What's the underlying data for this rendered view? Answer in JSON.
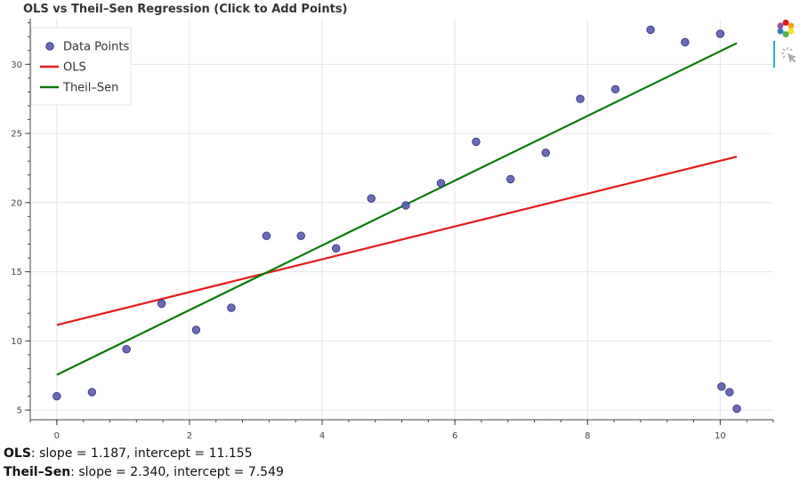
{
  "title": "OLS vs Theil–Sen Regression (Click to Add Points)",
  "chart_data": {
    "type": "scatter",
    "xlim": [
      -0.4,
      10.8
    ],
    "ylim": [
      4.3,
      33.3
    ],
    "x_ticks": [
      0,
      2,
      4,
      6,
      8,
      10
    ],
    "y_ticks": [
      5,
      10,
      15,
      20,
      25,
      30
    ],
    "grid": true,
    "legend_position": "top-left",
    "points": [
      [
        0,
        6.0
      ],
      [
        0.53,
        6.3
      ],
      [
        1.05,
        9.4
      ],
      [
        1.58,
        12.7
      ],
      [
        2.1,
        10.8
      ],
      [
        2.63,
        12.4
      ],
      [
        3.16,
        17.6
      ],
      [
        3.68,
        17.6
      ],
      [
        4.21,
        16.7
      ],
      [
        4.74,
        20.3
      ],
      [
        5.26,
        19.8
      ],
      [
        5.79,
        21.4
      ],
      [
        6.32,
        24.4
      ],
      [
        6.84,
        21.7
      ],
      [
        7.37,
        23.6
      ],
      [
        7.89,
        27.5
      ],
      [
        8.42,
        28.2
      ],
      [
        8.95,
        32.5
      ],
      [
        9.47,
        31.6
      ],
      [
        10.0,
        32.2
      ],
      [
        10.02,
        6.7
      ],
      [
        10.14,
        6.3
      ],
      [
        10.25,
        5.1
      ]
    ],
    "series": [
      {
        "name": "Data Points",
        "kind": "points",
        "color": "#5a5aae"
      },
      {
        "name": "OLS",
        "kind": "line",
        "color": "#e41a1c",
        "slope": 1.187,
        "intercept": 11.155,
        "x": [
          0,
          10.25
        ]
      },
      {
        "name": "Theil–Sen",
        "kind": "line",
        "color": "#0a7a0a",
        "slope": 2.34,
        "intercept": 7.549,
        "x": [
          0,
          10.25
        ]
      }
    ]
  },
  "stats": {
    "ols_label": "OLS",
    "ols_text": ": slope = 1.187, intercept = 11.155",
    "ts_label": "Theil–Sen",
    "ts_text": ": slope = 2.340, intercept = 7.549"
  },
  "toolbar": {
    "logo_icon": "bokeh-logo-icon",
    "tool_icon": "tap-tool-icon"
  }
}
